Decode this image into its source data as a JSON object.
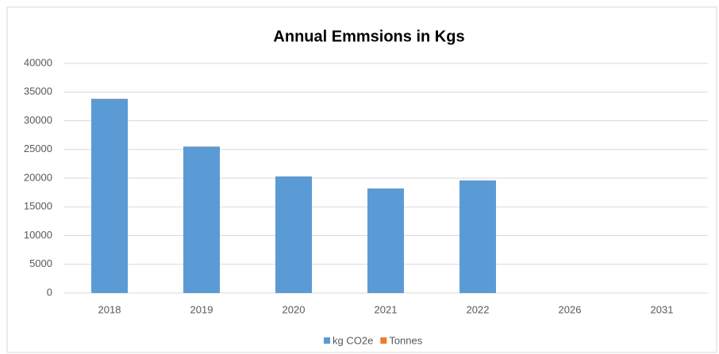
{
  "chart_data": {
    "type": "stacked_bar",
    "title": "Annual Emmsions in Kgs",
    "categories": [
      "2018",
      "2019",
      "2020",
      "2021",
      "2022",
      "2026",
      "2031"
    ],
    "series": [
      {
        "name": "kg CO2e",
        "color": "#5b9bd5",
        "values": [
          33800,
          25500,
          20300,
          18200,
          19600,
          null,
          null
        ]
      },
      {
        "name": "Tonnes",
        "color": "#ed7d31",
        "values": [
          33.8,
          25.5,
          20.3,
          18.2,
          19.6,
          null,
          null
        ]
      }
    ],
    "ylim": [
      0,
      40000
    ],
    "yticks": [
      0,
      5000,
      10000,
      15000,
      20000,
      25000,
      30000,
      35000,
      40000
    ],
    "grid": true,
    "legend": "bottom"
  }
}
